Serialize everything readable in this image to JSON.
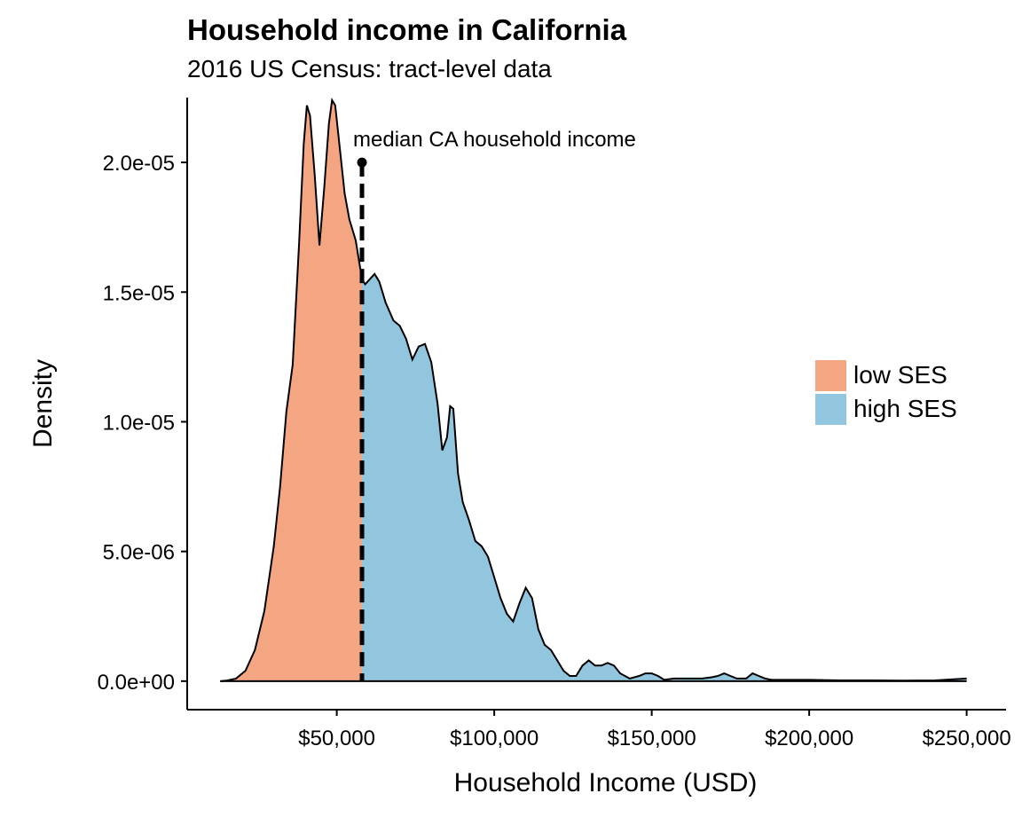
{
  "chart_data": {
    "type": "area",
    "title": "Household income in California",
    "subtitle": "2016 US Census: tract-level data",
    "xlabel": "Household Income (USD)",
    "ylabel": "Density",
    "xlim": [
      2500,
      262500
    ],
    "ylim": [
      -1.1e-06,
      2.25e-05
    ],
    "x_ticks": [
      {
        "value": 50000,
        "label": "$50,000"
      },
      {
        "value": 100000,
        "label": "$100,000"
      },
      {
        "value": 150000,
        "label": "$150,000"
      },
      {
        "value": 200000,
        "label": "$200,000"
      },
      {
        "value": 250000,
        "label": "$250,000"
      }
    ],
    "y_ticks": [
      {
        "value": 0,
        "label": "0.0e+00"
      },
      {
        "value": 5e-06,
        "label": "5.0e-06"
      },
      {
        "value": 1e-05,
        "label": "1.0e-05"
      },
      {
        "value": 1.5e-05,
        "label": "1.5e-05"
      },
      {
        "value": 2e-05,
        "label": "2.0e-05"
      }
    ],
    "split_x": 58000,
    "series": [
      {
        "name": "low SES",
        "color": "#F4A582"
      },
      {
        "name": "high SES",
        "color": "#92C5DE"
      }
    ],
    "density": {
      "x": [
        13000,
        15000,
        18000,
        21000,
        24000,
        27000,
        30000,
        32000,
        34000,
        36000,
        38000,
        39500,
        40500,
        41500,
        43000,
        44500,
        46000,
        47500,
        48500,
        49500,
        51000,
        52500,
        54000,
        56000,
        58000,
        59000,
        60500,
        62000,
        63500,
        65500,
        68000,
        70000,
        72000,
        74000,
        76000,
        78000,
        80000,
        82000,
        83500,
        85000,
        86000,
        87000,
        88500,
        90000,
        92000,
        94000,
        96000,
        98000,
        100000,
        102000,
        104000,
        106000,
        108000,
        110000,
        112000,
        114000,
        116000,
        118000,
        120000,
        122000,
        124000,
        126000,
        128000,
        130000,
        132000,
        134000,
        136000,
        138000,
        140000,
        143000,
        146000,
        148000,
        150000,
        152000,
        154000,
        157000,
        160000,
        163000,
        166000,
        169000,
        171000,
        173000,
        175000,
        177000,
        180000,
        182000,
        184000,
        186000,
        188000,
        191000,
        195000,
        200000,
        210000,
        220000,
        230000,
        240000,
        250000
      ],
      "y": [
        0,
        2e-08,
        1e-07,
        4e-07,
        1.2e-06,
        2.7e-06,
        5.2e-06,
        7.5e-06,
        1.04e-05,
        1.22e-05,
        1.68e-05,
        2.07e-05,
        2.22e-05,
        2.18e-05,
        1.95e-05,
        1.68e-05,
        1.9e-05,
        2.15e-05,
        2.24e-05,
        2.22e-05,
        2.05e-05,
        1.88e-05,
        1.78e-05,
        1.7e-05,
        1.55e-05,
        1.53e-05,
        1.55e-05,
        1.57e-05,
        1.54e-05,
        1.46e-05,
        1.39e-05,
        1.37e-05,
        1.32e-05,
        1.24e-05,
        1.29e-05,
        1.3e-05,
        1.23e-05,
        1.07e-05,
        8.9e-06,
        9.4e-06,
        1.06e-05,
        1.05e-05,
        8e-06,
        6.9e-06,
        6.2e-06,
        5.4e-06,
        5.2e-06,
        4.8e-06,
        4e-06,
        3.2e-06,
        2.6e-06,
        2.3e-06,
        3e-06,
        3.6e-06,
        3.2e-06,
        2e-06,
        1.4e-06,
        1.2e-06,
        8e-07,
        4e-07,
        2e-07,
        2e-07,
        6e-07,
        8e-07,
        6e-07,
        6e-07,
        7e-07,
        6e-07,
        3e-07,
        1e-07,
        2e-07,
        3e-07,
        3e-07,
        2e-07,
        5e-08,
        1e-07,
        1e-07,
        1e-07,
        1e-07,
        1.5e-07,
        2e-07,
        3e-07,
        2e-07,
        1e-07,
        1e-07,
        3e-07,
        2e-07,
        1e-07,
        5e-08,
        5e-08,
        5e-08,
        5e-08,
        3e-08,
        3e-08,
        2e-08,
        3e-08,
        1e-07
      ]
    },
    "annotation": {
      "text": "median CA household income",
      "x": 58000,
      "y": 2e-05
    },
    "legend_position": "right",
    "grid": false
  }
}
